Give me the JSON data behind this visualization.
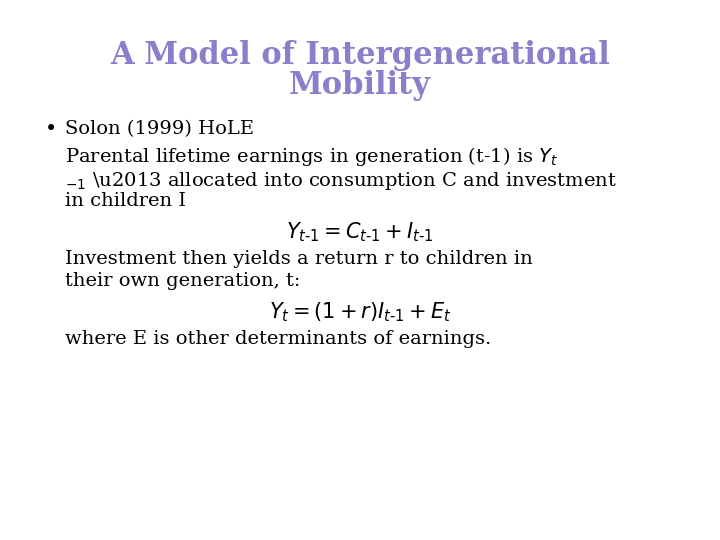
{
  "title_line1": "A Model of Intergenerational",
  "title_line2": "Mobility",
  "title_color": "#8B7FCC",
  "title_fontsize": 22,
  "body_fontsize": 14,
  "equation_fontsize": 15,
  "background_color": "#ffffff",
  "text_color": "#000000",
  "bullet": "•",
  "bullet_text": "Solon (1999) HoLE"
}
